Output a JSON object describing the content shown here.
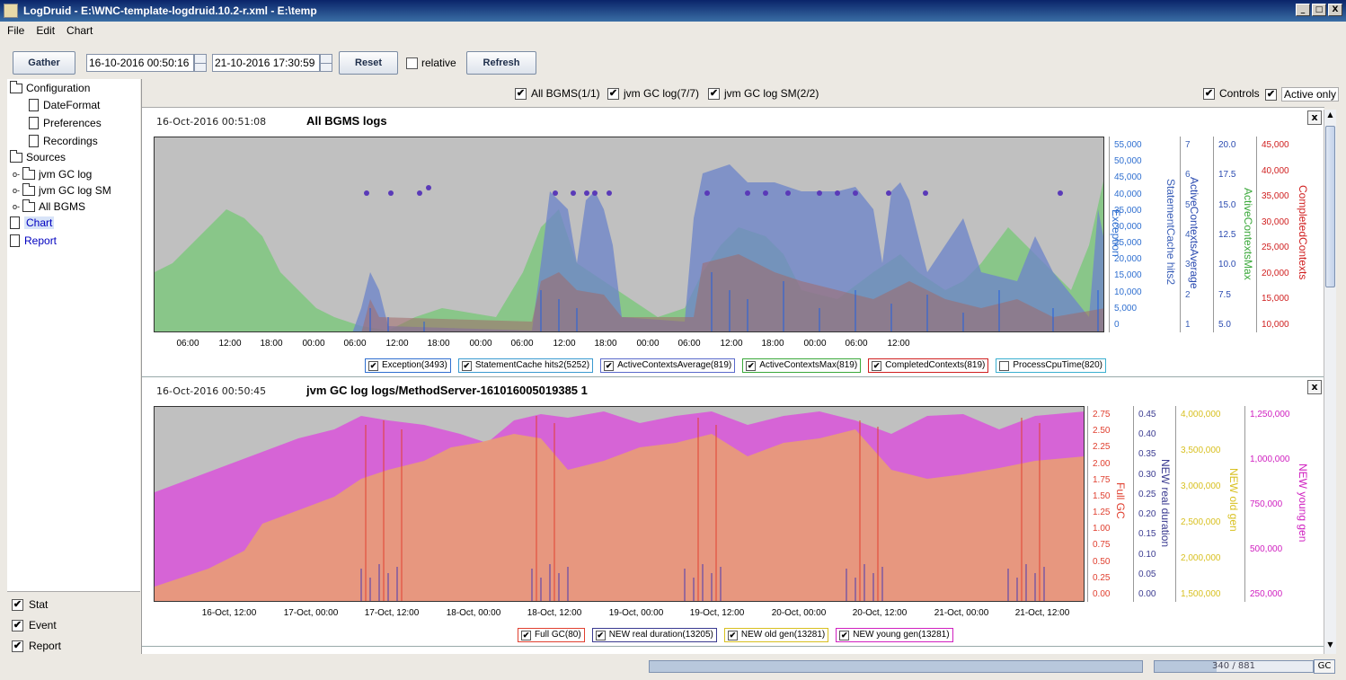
{
  "window": {
    "title": "LogDruid - E:\\WNC-template-logdruid.10.2-r.xml - E:\\temp",
    "buttons": [
      "_",
      "□",
      "X"
    ]
  },
  "menu": [
    "File",
    "Edit",
    "Chart"
  ],
  "toolbar": {
    "gather": "Gather",
    "start_date": "16-10-2016 00:50:16",
    "end_date": "21-10-2016 17:30:59",
    "reset": "Reset",
    "relative_label": "relative",
    "relative_checked": false,
    "refresh": "Refresh"
  },
  "tree": {
    "configuration": "Configuration",
    "config_items": [
      "DateFormat",
      "Preferences",
      "Recordings"
    ],
    "sources": "Sources",
    "source_items": [
      "jvm GC log",
      "jvm GC log SM",
      "All BGMS"
    ],
    "chart": "Chart",
    "report": "Report"
  },
  "bottom_checks": [
    {
      "label": "Stat",
      "checked": true
    },
    {
      "label": "Event",
      "checked": true
    },
    {
      "label": "Report",
      "checked": true
    }
  ],
  "filters": [
    {
      "label": "All BGMS(1/1)",
      "checked": true
    },
    {
      "label": "jvm GC log(7/7)",
      "checked": true
    },
    {
      "label": "jvm GC log SM(2/2)",
      "checked": true
    }
  ],
  "options": [
    {
      "label": "Controls",
      "checked": true
    },
    {
      "label": "Active only",
      "checked": true
    }
  ],
  "panel1": {
    "time": "16-Oct-2016 00:51:08",
    "title": "All BGMS logs",
    "close": "x",
    "x_ticks": [
      "06:00",
      "12:00",
      "18:00",
      "00:00",
      "06:00",
      "12:00",
      "18:00",
      "00:00",
      "06:00",
      "12:00",
      "18:00",
      "00:00",
      "06:00",
      "12:00",
      "18:00",
      "00:00",
      "06:00",
      "12:00"
    ],
    "axes": [
      {
        "label": "Exception",
        "color": "#2f6fd0",
        "ticks": [
          "55,000",
          "50,000",
          "45,000",
          "40,000",
          "35,000",
          "30,000",
          "25,000",
          "20,000",
          "15,000",
          "10,000",
          "5,000",
          "0"
        ]
      },
      {
        "label": "StatementCache hits2",
        "color": "#3a5fb8",
        "ticks": [
          "7",
          "6",
          "5",
          "4",
          "3",
          "2",
          "1"
        ]
      },
      {
        "label": "ActiveContextsAverage",
        "color": "#2a4ab0",
        "ticks": [
          "20.0",
          "17.5",
          "15.0",
          "12.5",
          "10.0",
          "7.5",
          "5.0"
        ]
      },
      {
        "label": "ActiveContextsMax",
        "color": "#3aa83a",
        "ticks": []
      },
      {
        "label": "CompletedContexts",
        "color": "#d02020",
        "ticks": [
          "45,000",
          "40,000",
          "35,000",
          "30,000",
          "25,000",
          "20,000",
          "15,000",
          "10,000"
        ]
      }
    ],
    "legend": [
      {
        "label": "Exception(3493)",
        "checked": true,
        "color": "#2f6fd0"
      },
      {
        "label": "StatementCache hits2(5252)",
        "checked": true,
        "color": "#3a9ad0"
      },
      {
        "label": "ActiveContextsAverage(819)",
        "checked": true,
        "color": "#5a6acb"
      },
      {
        "label": "ActiveContextsMax(819)",
        "checked": true,
        "color": "#3aa83a"
      },
      {
        "label": "CompletedContexts(819)",
        "checked": true,
        "color": "#d02020"
      },
      {
        "label": "ProcessCpuTime(820)",
        "checked": false,
        "color": "#3ab0d0"
      }
    ]
  },
  "panel2": {
    "time": "16-Oct-2016 00:50:45",
    "title": "jvm GC log logs/MethodServer-161016005019385 1",
    "close": "x",
    "x_ticks": [
      "16-Oct, 12:00",
      "17-Oct, 00:00",
      "17-Oct, 12:00",
      "18-Oct, 00:00",
      "18-Oct, 12:00",
      "19-Oct, 00:00",
      "19-Oct, 12:00",
      "20-Oct, 00:00",
      "20-Oct, 12:00",
      "21-Oct, 00:00",
      "21-Oct, 12:00"
    ],
    "axes": [
      {
        "label": "Full GC",
        "color": "#e04030",
        "ticks": [
          "2.75",
          "2.50",
          "2.25",
          "2.00",
          "1.75",
          "1.50",
          "1.25",
          "1.00",
          "0.75",
          "0.50",
          "0.25",
          "0.00"
        ]
      },
      {
        "label": "NEW real duration",
        "color": "#3a3a90",
        "ticks": [
          "0.45",
          "0.40",
          "0.35",
          "0.30",
          "0.25",
          "0.20",
          "0.15",
          "0.10",
          "0.05",
          "0.00"
        ]
      },
      {
        "label": "NEW old gen",
        "color": "#d8c020",
        "ticks": [
          "4,000,000",
          "3,500,000",
          "3,000,000",
          "2,500,000",
          "2,000,000",
          "1,500,000"
        ]
      },
      {
        "label": "NEW young gen",
        "color": "#d020c0",
        "ticks": [
          "1,250,000",
          "1,000,000",
          "750,000",
          "500,000",
          "250,000"
        ]
      }
    ],
    "legend": [
      {
        "label": "Full GC(80)",
        "checked": true,
        "color": "#e04030"
      },
      {
        "label": "NEW real duration(13205)",
        "checked": true,
        "color": "#3a3a90"
      },
      {
        "label": "NEW old gen(13281)",
        "checked": true,
        "color": "#d8c020"
      },
      {
        "label": "NEW young gen(13281)",
        "checked": true,
        "color": "#d020c0"
      }
    ]
  },
  "status": {
    "progress_text": "340 / 881",
    "progress_fraction": 0.39,
    "gc_label": "GC"
  }
}
